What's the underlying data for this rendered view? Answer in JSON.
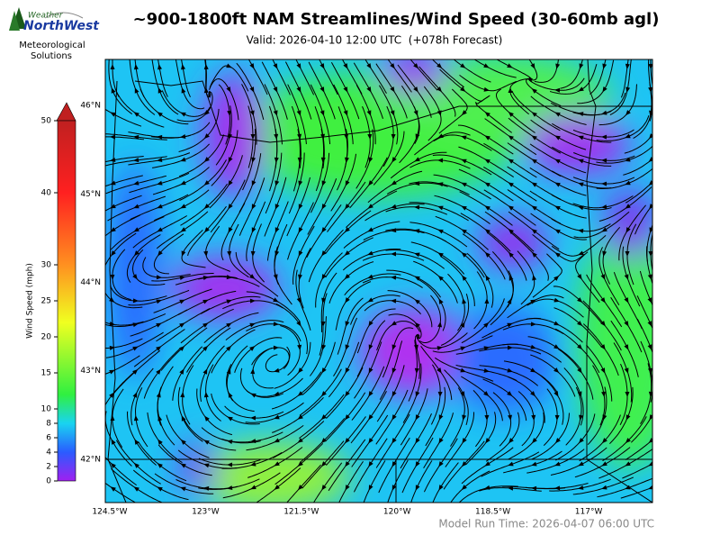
{
  "header": {
    "logo_top": "Weather",
    "logo": "NorthWest",
    "org_line1": "Meteorological",
    "org_line2": "Solutions",
    "title": "~900-1800ft NAM Streamlines/Wind Speed (30-60mb agl)",
    "subtitle": "Valid: 2026-04-10 12:00 UTC  (+078h Forecast)"
  },
  "map": {
    "xlim": [
      -124.57,
      -116.0
    ],
    "ylim": [
      41.51,
      46.52
    ],
    "lat_ticks": [
      {
        "value": 46,
        "label": "46°N"
      },
      {
        "value": 45,
        "label": "45°N"
      },
      {
        "value": 44,
        "label": "44°N"
      },
      {
        "value": 43,
        "label": "43°N"
      },
      {
        "value": 42,
        "label": "42°N"
      }
    ],
    "lon_ticks": [
      {
        "value": -124.5,
        "label": "124.5°W"
      },
      {
        "value": -123,
        "label": "123°W"
      },
      {
        "value": -121.5,
        "label": "121.5°W"
      },
      {
        "value": -120,
        "label": "120°W"
      },
      {
        "value": -118.5,
        "label": "118.5°W"
      },
      {
        "value": -117,
        "label": "117°W"
      }
    ]
  },
  "colorbar": {
    "label": "Wind Speed (mph)",
    "lim": [
      0,
      50
    ],
    "ticks": [
      0,
      2,
      4,
      6,
      8,
      10,
      15,
      20,
      25,
      30,
      40,
      50
    ]
  },
  "footer": {
    "model_run": "Model Run Time: 2026-04-07 06:00 UTC"
  }
}
